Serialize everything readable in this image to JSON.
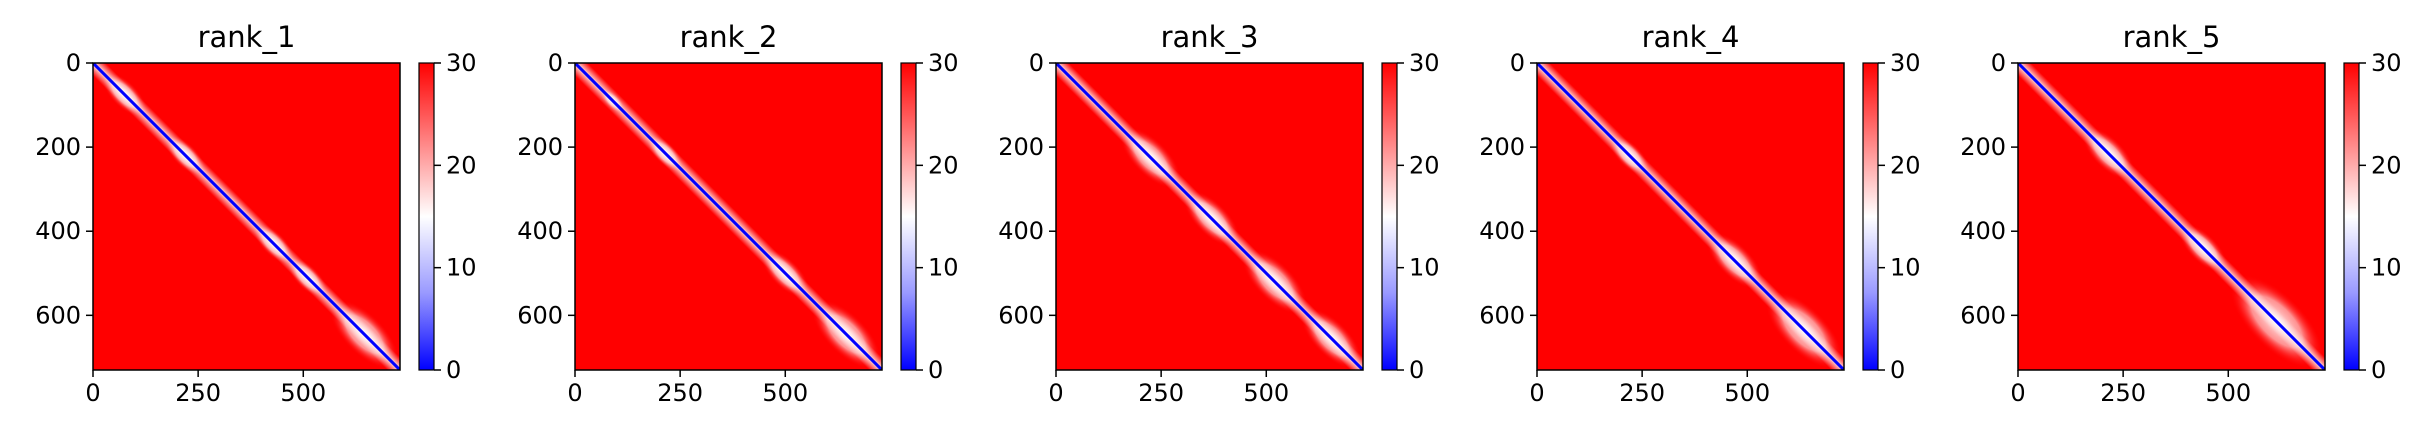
{
  "chart_data": [
    {
      "type": "heatmap",
      "title": "rank_1",
      "xlim": [
        0,
        730
      ],
      "ylim": [
        730,
        0
      ],
      "xticks": [
        "0",
        "250",
        "500"
      ],
      "yticks": [
        "0",
        "200",
        "400",
        "600"
      ],
      "colorbar": {
        "min": 0,
        "max": 30,
        "ticks": [
          "0",
          "10",
          "20",
          "30"
        ]
      },
      "blocks": [
        [
          20,
          130
        ],
        [
          170,
          270
        ],
        [
          380,
          480
        ],
        [
          460,
          560
        ],
        [
          560,
          730
        ]
      ]
    },
    {
      "type": "heatmap",
      "title": "rank_2",
      "xlim": [
        0,
        730
      ],
      "ylim": [
        730,
        0
      ],
      "xticks": [
        "0",
        "250",
        "500"
      ],
      "yticks": [
        "0",
        "200",
        "400",
        "600"
      ],
      "colorbar": {
        "min": 0,
        "max": 30,
        "ticks": [
          "0",
          "10",
          "20",
          "30"
        ]
      },
      "blocks": [
        [
          60,
          120
        ],
        [
          170,
          260
        ],
        [
          440,
          560
        ],
        [
          560,
          730
        ]
      ]
    },
    {
      "type": "heatmap",
      "title": "rank_3",
      "xlim": [
        0,
        730
      ],
      "ylim": [
        730,
        0
      ],
      "xticks": [
        "0",
        "250",
        "500"
      ],
      "yticks": [
        "0",
        "200",
        "400",
        "600"
      ],
      "colorbar": {
        "min": 0,
        "max": 30,
        "ticks": [
          "0",
          "10",
          "20",
          "30"
        ]
      },
      "blocks": [
        [
          150,
          300
        ],
        [
          300,
          440
        ],
        [
          440,
          600
        ],
        [
          580,
          730
        ]
      ]
    },
    {
      "type": "heatmap",
      "title": "rank_4",
      "xlim": [
        0,
        730
      ],
      "ylim": [
        730,
        0
      ],
      "xticks": [
        "0",
        "250",
        "500"
      ],
      "yticks": [
        "0",
        "200",
        "400",
        "600"
      ],
      "colorbar": {
        "min": 0,
        "max": 30,
        "ticks": [
          "0",
          "10",
          "20",
          "30"
        ]
      },
      "blocks": [
        [
          170,
          270
        ],
        [
          400,
          540
        ],
        [
          540,
          730
        ]
      ]
    },
    {
      "type": "heatmap",
      "title": "rank_5",
      "xlim": [
        0,
        730
      ],
      "ylim": [
        730,
        0
      ],
      "xticks": [
        "0",
        "250",
        "500"
      ],
      "yticks": [
        "0",
        "200",
        "400",
        "600"
      ],
      "colorbar": {
        "min": 0,
        "max": 30,
        "ticks": [
          "0",
          "10",
          "20",
          "30"
        ]
      },
      "blocks": [
        [
          150,
          280
        ],
        [
          380,
          500
        ],
        [
          500,
          730
        ]
      ]
    }
  ],
  "colors": {
    "low": "#0000ff",
    "mid": "#ffffff",
    "high": "#ff0000",
    "diagonal": "#0000ff"
  }
}
